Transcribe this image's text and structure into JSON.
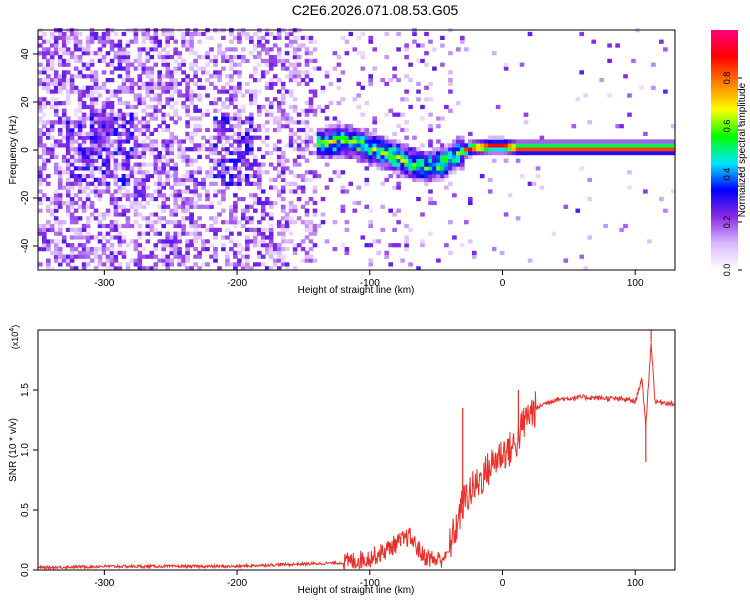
{
  "title": "C2E6.2026.071.08.53.G05",
  "chart_data": [
    {
      "type": "heatmap",
      "name": "spectrogram",
      "xlabel": "Height of straight line (km)",
      "ylabel": "Frequency (Hz)",
      "xlim": [
        -350,
        130
      ],
      "ylim": [
        -50,
        50
      ],
      "xticks": [
        -300,
        -200,
        -100,
        0,
        100
      ],
      "yticks": [
        -40,
        -20,
        0,
        20,
        40
      ],
      "colorbar": {
        "label": "Normalized spectral amplitude",
        "range": [
          0,
          1
        ],
        "ticks": [
          0.0,
          0.2,
          0.4,
          0.6,
          0.8
        ],
        "tick_labels": [
          "0.0",
          "0.2",
          "0.4",
          "0.6",
          "0.8"
        ],
        "colors": [
          "#ffffff",
          "#d9b8ff",
          "#8a2be2",
          "#0000ff",
          "#00e5ff",
          "#00ff00",
          "#ffff00",
          "#ff8000",
          "#ff0000",
          "#ff007f"
        ]
      },
      "ridge": {
        "x": [
          -140,
          -120,
          -100,
          -80,
          -60,
          -45,
          -35,
          -25,
          -10,
          0,
          10,
          50,
          100,
          130
        ],
        "y": [
          2,
          3,
          0,
          -4,
          -8,
          -6,
          -2,
          0,
          1,
          1,
          0,
          0,
          0,
          0
        ]
      },
      "noise_region": [
        -350,
        -140
      ]
    },
    {
      "type": "line",
      "name": "snr",
      "xlabel": "Height of straight line (km)",
      "ylabel": "SNR (10 * v/v)",
      "scale_label": "(x10",
      "scale_exp": "4",
      "xlim": [
        -350,
        130
      ],
      "ylim": [
        0,
        2
      ],
      "xticks": [
        -300,
        -200,
        -100,
        0,
        100
      ],
      "yticks": [
        0.0,
        0.5,
        1.0,
        1.5
      ],
      "ytick_labels": [
        "0.0",
        "0.5",
        "1.0",
        "1.5"
      ],
      "color": "#e8302a",
      "series": {
        "x": [
          -350,
          -300,
          -250,
          -200,
          -180,
          -150,
          -120,
          -100,
          -90,
          -80,
          -70,
          -60,
          -50,
          -45,
          -40,
          -35,
          -30,
          -25,
          -20,
          -15,
          -10,
          -5,
          0,
          5,
          10,
          15,
          20,
          30,
          40,
          60,
          80,
          95,
          100,
          105,
          108,
          112,
          115,
          120,
          130
        ],
        "y": [
          0.02,
          0.03,
          0.03,
          0.03,
          0.04,
          0.05,
          0.06,
          0.1,
          0.15,
          0.22,
          0.28,
          0.12,
          0.08,
          0.1,
          0.2,
          0.35,
          0.55,
          0.65,
          0.7,
          0.78,
          0.85,
          0.92,
          0.98,
          1.0,
          1.05,
          1.2,
          1.3,
          1.38,
          1.42,
          1.44,
          1.43,
          1.42,
          1.4,
          1.6,
          1.2,
          1.9,
          1.4,
          1.4,
          1.38
        ]
      },
      "spikes": [
        {
          "x": -30,
          "y": 1.35
        },
        {
          "x": 12,
          "y": 1.5
        },
        {
          "x": 108,
          "y": 0.9
        },
        {
          "x": 112,
          "y": 2.0
        }
      ]
    }
  ]
}
